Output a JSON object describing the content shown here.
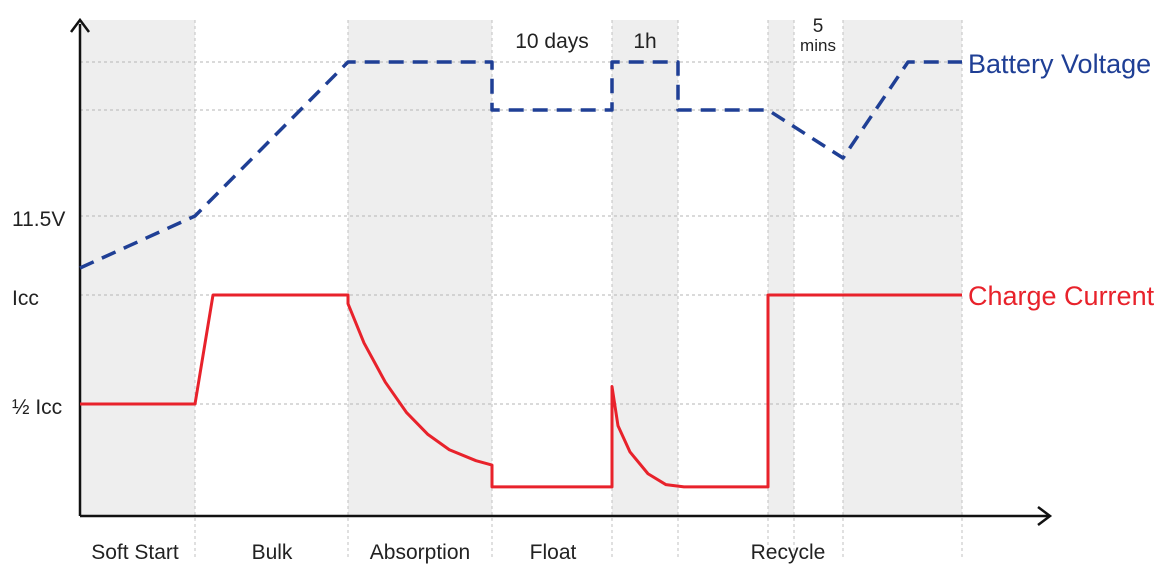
{
  "chart_data": {
    "type": "line",
    "title": "",
    "xlabel": "",
    "ylabel": "",
    "grid": true,
    "y_ticks": [
      "11.5V",
      "Icc",
      "½ Icc"
    ],
    "stages": [
      "Soft Start",
      "Bulk",
      "Absorption",
      "Float",
      "Recycle"
    ],
    "annotations": [
      {
        "text": "10 days"
      },
      {
        "text": "1h"
      },
      {
        "text_top": "5",
        "text_bottom": "mins"
      }
    ],
    "series": [
      {
        "name": "Battery Voltage",
        "color": "#1f3f95",
        "style": "dashed",
        "points": [
          [
            0,
            0.35
          ],
          [
            1,
            0.55
          ],
          [
            2,
            1.0
          ],
          [
            3,
            1.0
          ],
          [
            3,
            0.78
          ],
          [
            4,
            0.78
          ],
          [
            4,
            1.0
          ],
          [
            4.6,
            1.0
          ],
          [
            4.6,
            0.78
          ],
          [
            5.4,
            0.78
          ],
          [
            6.1,
            0.6
          ],
          [
            6.7,
            1.0
          ],
          [
            7.0,
            1.0
          ]
        ]
      },
      {
        "name": "Charge Current",
        "color": "#e8222b",
        "style": "solid",
        "points": [
          [
            0,
            0.5
          ],
          [
            1,
            0.5
          ],
          [
            1.15,
            1.0
          ],
          [
            2.35,
            1.0
          ],
          [
            2.35,
            0.96
          ],
          [
            2.5,
            0.78
          ],
          [
            2.7,
            0.6
          ],
          [
            2.9,
            0.46
          ],
          [
            3.1,
            0.36
          ],
          [
            3.3,
            0.29
          ],
          [
            3.55,
            0.24
          ],
          [
            3.7,
            0.22
          ],
          [
            3.7,
            0.12
          ],
          [
            4.8,
            0.12
          ],
          [
            4.8,
            0.58
          ],
          [
            4.85,
            0.4
          ],
          [
            4.95,
            0.28
          ],
          [
            5.1,
            0.18
          ],
          [
            5.25,
            0.13
          ],
          [
            5.4,
            0.12
          ],
          [
            5.9,
            0.12
          ],
          [
            5.9,
            1.0
          ],
          [
            7.0,
            1.0
          ]
        ]
      }
    ]
  }
}
